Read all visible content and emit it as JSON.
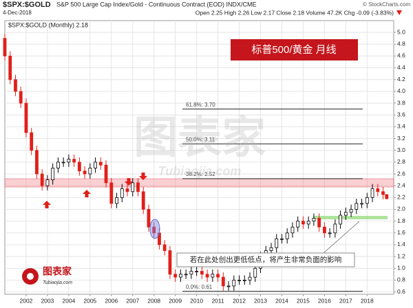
{
  "chart_data": {
    "type": "candlestick",
    "title": "$SPX:$GOLD",
    "subtitle": "S&P 500 Large Cap Index/Gold - Continuous Contract (EOD) INDX/CME",
    "date": "4-Dec-2018",
    "quote": "Open 2.25  High 2.26  Low 2.17  Close 2.18  Volume 47.2K  Chg -0.09 (-3.83%)",
    "credit": "© StockCharts.com",
    "legend": "$SPX:$GOLD (Monthly) 2.18",
    "annotation_title": "标普500/黄金  月线",
    "annotation": "若在此处创出更低低点，将产生非常负面的影响",
    "watermark": "图表家",
    "watermark_url": "Tubiaojia.com",
    "up_color": "#000000",
    "down_color": "#e0201a",
    "grid": true,
    "xlim": [
      2001.0,
      2019.25
    ],
    "xticks": [
      2002,
      2003,
      2004,
      2005,
      2006,
      2007,
      2008,
      2009,
      2010,
      2011,
      2012,
      2013,
      2014,
      2015,
      2016,
      2017,
      2018
    ],
    "ylim": [
      0.56,
      5.2
    ],
    "yticks": [
      0.6,
      0.8,
      {
        "value": 1,
        "label": "1.0"
      },
      1.2,
      1.4,
      1.6,
      1.8,
      {
        "value": 2,
        "label": "2.0"
      },
      2.2,
      2.4,
      2.6,
      2.8,
      {
        "value": 3,
        "label": "3.0"
      },
      3.2,
      3.4,
      3.6,
      3.8,
      {
        "value": 4,
        "label": "4.0"
      },
      4.2,
      4.4,
      4.6,
      4.8,
      {
        "value": 5,
        "label": "5.0"
      }
    ],
    "fib": [
      {
        "label": "61.8%: 3.70",
        "value": 3.7
      },
      {
        "label": "50.0%: 3.11",
        "value": 3.11
      },
      {
        "label": "38.2%: 2.52",
        "value": 2.52
      },
      {
        "label": "0.0%: 0.61",
        "value": 0.61
      }
    ],
    "x": [
      2001.0,
      2001.25,
      2001.5,
      2001.75,
      2002.0,
      2002.25,
      2002.5,
      2002.75,
      2003.0,
      2003.25,
      2003.5,
      2003.75,
      2004.0,
      2004.25,
      2004.5,
      2004.75,
      2005.0,
      2005.25,
      2005.5,
      2005.75,
      2006.0,
      2006.25,
      2006.5,
      2006.75,
      2007.0,
      2007.25,
      2007.5,
      2007.75,
      2008.0,
      2008.25,
      2008.5,
      2008.75,
      2009.0,
      2009.25,
      2009.5,
      2009.75,
      2010.0,
      2010.25,
      2010.5,
      2010.75,
      2011.0,
      2011.25,
      2011.5,
      2011.75,
      2012.0,
      2012.25,
      2012.5,
      2012.75,
      2013.0,
      2013.25,
      2013.5,
      2013.75,
      2014.0,
      2014.25,
      2014.5,
      2014.75,
      2015.0,
      2015.25,
      2015.5,
      2015.75,
      2016.0,
      2016.25,
      2016.5,
      2016.75,
      2017.0,
      2017.25,
      2017.5,
      2017.75,
      2018.0,
      2018.25,
      2018.5,
      2018.75,
      2018.92
    ],
    "open": [
      4.9,
      4.6,
      4.2,
      4.0,
      3.8,
      3.3,
      3.0,
      2.6,
      2.4,
      2.5,
      2.7,
      2.8,
      2.8,
      2.85,
      2.8,
      2.65,
      2.6,
      2.7,
      2.8,
      2.75,
      2.45,
      2.1,
      2.2,
      2.35,
      2.3,
      2.45,
      2.3,
      2.0,
      1.7,
      1.6,
      1.4,
      1.3,
      0.9,
      0.85,
      0.9,
      0.9,
      0.95,
      0.95,
      0.9,
      0.85,
      0.9,
      0.85,
      0.7,
      0.7,
      0.8,
      0.8,
      0.8,
      0.85,
      1.0,
      1.2,
      1.3,
      1.35,
      1.5,
      1.5,
      1.6,
      1.7,
      1.8,
      1.75,
      1.8,
      1.85,
      1.7,
      1.6,
      1.6,
      1.75,
      1.9,
      1.95,
      2.0,
      2.1,
      2.1,
      2.2,
      2.35,
      2.3,
      2.25
    ],
    "high": [
      4.98,
      4.68,
      4.28,
      4.08,
      3.88,
      3.38,
      3.08,
      2.68,
      2.58,
      2.78,
      2.88,
      2.88,
      2.93,
      2.93,
      2.88,
      2.73,
      2.78,
      2.88,
      2.88,
      2.83,
      2.53,
      2.28,
      2.43,
      2.43,
      2.53,
      2.53,
      2.38,
      2.08,
      1.78,
      1.68,
      1.48,
      1.38,
      0.98,
      0.98,
      0.98,
      1.03,
      1.03,
      1.03,
      0.98,
      0.98,
      0.98,
      0.93,
      0.78,
      0.88,
      0.88,
      0.88,
      0.93,
      1.08,
      1.28,
      1.38,
      1.43,
      1.58,
      1.58,
      1.68,
      1.78,
      1.88,
      1.88,
      1.88,
      1.93,
      1.93,
      1.78,
      1.68,
      1.83,
      1.98,
      2.03,
      2.08,
      2.18,
      2.18,
      2.28,
      2.43,
      2.43,
      2.38,
      2.26
    ],
    "low": [
      4.52,
      4.12,
      3.92,
      3.72,
      3.22,
      2.92,
      2.52,
      2.32,
      2.32,
      2.42,
      2.62,
      2.72,
      2.72,
      2.72,
      2.57,
      2.52,
      2.52,
      2.62,
      2.67,
      2.37,
      2.02,
      2.02,
      2.12,
      2.22,
      2.22,
      2.22,
      1.92,
      1.62,
      1.52,
      1.32,
      1.22,
      0.82,
      0.77,
      0.77,
      0.82,
      0.82,
      0.87,
      0.82,
      0.77,
      0.77,
      0.77,
      0.62,
      0.62,
      0.62,
      0.72,
      0.72,
      0.72,
      0.77,
      0.92,
      1.12,
      1.22,
      1.27,
      1.42,
      1.42,
      1.52,
      1.62,
      1.67,
      1.67,
      1.72,
      1.62,
      1.52,
      1.52,
      1.52,
      1.67,
      1.82,
      1.87,
      1.92,
      2.02,
      2.02,
      2.12,
      2.22,
      2.17,
      2.17
    ],
    "close": [
      4.6,
      4.2,
      4.0,
      3.8,
      3.3,
      3.0,
      2.6,
      2.4,
      2.5,
      2.7,
      2.8,
      2.8,
      2.85,
      2.8,
      2.65,
      2.6,
      2.7,
      2.8,
      2.75,
      2.45,
      2.1,
      2.2,
      2.35,
      2.3,
      2.45,
      2.3,
      2.0,
      1.7,
      1.6,
      1.4,
      1.3,
      0.9,
      0.85,
      0.9,
      0.9,
      0.95,
      0.95,
      0.9,
      0.85,
      0.9,
      0.85,
      0.7,
      0.7,
      0.8,
      0.8,
      0.8,
      0.85,
      1.0,
      1.2,
      1.3,
      1.35,
      1.5,
      1.5,
      1.6,
      1.7,
      1.8,
      1.75,
      1.8,
      1.85,
      1.7,
      1.6,
      1.6,
      1.75,
      1.9,
      1.95,
      2.0,
      2.1,
      2.1,
      2.2,
      2.35,
      2.3,
      2.25,
      2.18
    ]
  }
}
